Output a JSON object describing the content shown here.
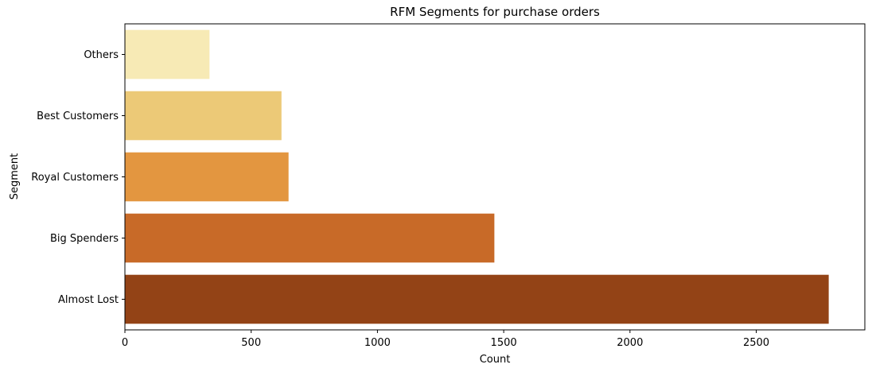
{
  "chart_data": {
    "type": "bar",
    "orientation": "horizontal",
    "title": "RFM Segments for purchase orders",
    "xlabel": "Count",
    "ylabel": "Segment",
    "categories": [
      "Others",
      "Best Customers",
      "Royal Customers",
      "Big Spenders",
      "Almost Lost"
    ],
    "values": [
      335,
      620,
      648,
      1463,
      2787
    ],
    "colors": [
      "#f7eab5",
      "#ecc977",
      "#e39640",
      "#c86a28",
      "#934316"
    ],
    "xlim": [
      0,
      2930
    ],
    "xticks": [
      0,
      500,
      1000,
      1500,
      2000,
      2500
    ],
    "grid": false,
    "legend": "none"
  }
}
